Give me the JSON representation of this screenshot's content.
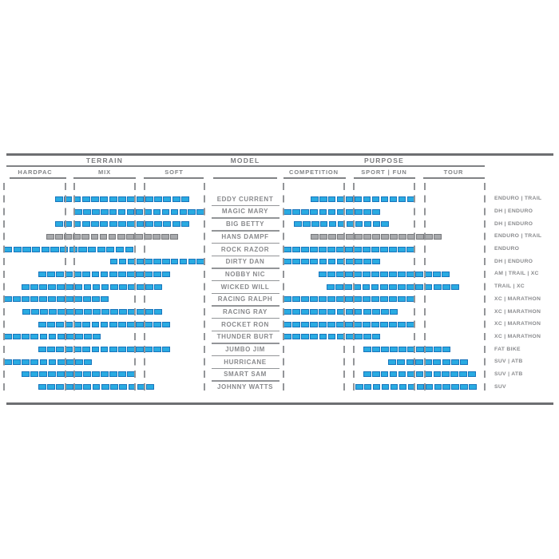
{
  "chart_data": {
    "type": "bar",
    "variant": "horizontal-range-chart",
    "title": "",
    "legend_position": "none",
    "grid": "dashed-vertical-column-guides",
    "axis_note": "terrain and purpose ranges are [start,end] in percent (0-100) of each three-column section width",
    "sections": {
      "terrain": {
        "label": "TERRAIN",
        "columns": [
          "HARDPAC",
          "MIX",
          "SOFT"
        ]
      },
      "model": {
        "label": "MODEL"
      },
      "purpose": {
        "label": "PURPOSE",
        "columns": [
          "COMPETITION",
          "SPORT | FUN",
          "TOUR"
        ]
      }
    },
    "colors": {
      "bar_fill": "#29ABE2",
      "bar_border": "#1B75BC",
      "bar_gray_fill": "#A7A9AC",
      "bar_gray_border": "#77787B",
      "text": "#808285",
      "line": "#6D6E71",
      "dash": "#939598"
    },
    "rows": [
      {
        "model": "EDDY CURRENT",
        "terrain": [
          25.5,
          92.4
        ],
        "purpose": [
          13.5,
          65.1
        ],
        "category": "ENDURO | TRAIL",
        "style": "blue"
      },
      {
        "model": "MAGIC MARY",
        "terrain": [
          35.1,
          100
        ],
        "purpose": [
          0,
          48
        ],
        "category": "DH | ENDURO",
        "style": "blue"
      },
      {
        "model": "BIG BETTY",
        "terrain": [
          25.5,
          92.4
        ],
        "purpose": [
          5.2,
          52.4
        ],
        "category": "DH | ENDURO",
        "style": "blue"
      },
      {
        "model": "HANS DAMPF",
        "terrain": [
          21.1,
          86.9
        ],
        "purpose": [
          13.5,
          78.6
        ],
        "category": "ENDURO | TRAIL",
        "style": "gray"
      },
      {
        "model": "ROCK RAZOR",
        "terrain": [
          0,
          64.5
        ],
        "purpose": [
          0,
          65.1
        ],
        "category": "ENDURO",
        "style": "blue"
      },
      {
        "model": "DIRTY DAN",
        "terrain": [
          53.0,
          100
        ],
        "purpose": [
          0,
          48
        ],
        "category": "DH | ENDURO",
        "style": "blue"
      },
      {
        "model": "NOBBY NIC",
        "terrain": [
          17.1,
          82.9
        ],
        "purpose": [
          17.5,
          82.5
        ],
        "category": "AM | TRAIL | XC",
        "style": "blue"
      },
      {
        "model": "WICKED WILL",
        "terrain": [
          8.8,
          78.9
        ],
        "purpose": [
          21.4,
          87.3
        ],
        "category": "TRAIL | XC",
        "style": "blue"
      },
      {
        "model": "RACING RALPH",
        "terrain": [
          0,
          52.2
        ],
        "purpose": [
          0,
          65.1
        ],
        "category": "XC | MARATHON",
        "style": "blue"
      },
      {
        "model": "RACING RAY",
        "terrain": [
          9.2,
          78.9
        ],
        "purpose": [
          0,
          56.7
        ],
        "category": "XC | MARATHON",
        "style": "blue"
      },
      {
        "model": "ROCKET RON",
        "terrain": [
          17.1,
          82.9
        ],
        "purpose": [
          0,
          65.1
        ],
        "category": "XC | MARATHON",
        "style": "blue"
      },
      {
        "model": "THUNDER BURT",
        "terrain": [
          0,
          48.2
        ],
        "purpose": [
          0,
          48
        ],
        "category": "XC | MARATHON",
        "style": "blue"
      },
      {
        "model": "JUMBO JIM",
        "terrain": [
          17.1,
          82.9
        ],
        "purpose": [
          39.7,
          82.9
        ],
        "category": "FAT BIKE",
        "style": "blue"
      },
      {
        "model": "HURRICANE",
        "terrain": [
          0,
          43.8
        ],
        "purpose": [
          52.0,
          91.7
        ],
        "category": "SUV | ATB",
        "style": "blue"
      },
      {
        "model": "SMART SAM",
        "terrain": [
          8.8,
          65.3
        ],
        "purpose": [
          39.7,
          95.6
        ],
        "category": "SUV | ATB",
        "style": "blue"
      },
      {
        "model": "JOHNNY WATTS",
        "terrain": [
          17.1,
          74.9
        ],
        "purpose": [
          35.7,
          96.0
        ],
        "category": "SUV",
        "style": "blue"
      }
    ]
  }
}
